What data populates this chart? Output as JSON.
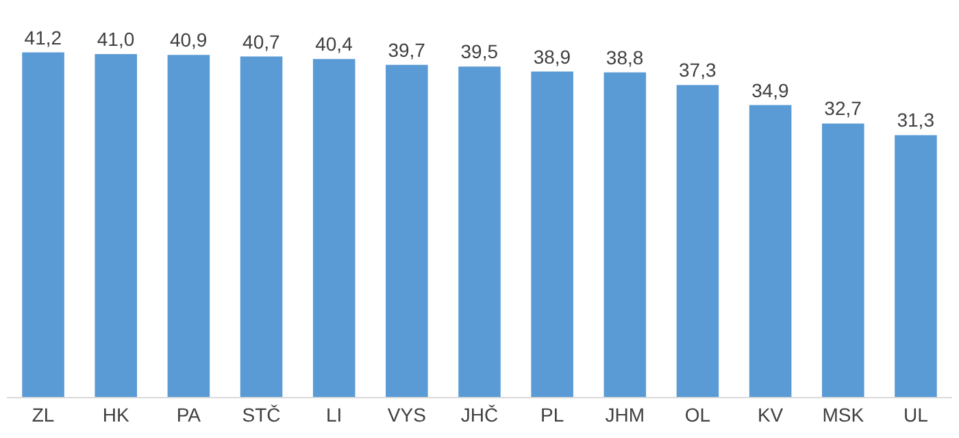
{
  "chart_data": {
    "type": "bar",
    "categories": [
      "ZL",
      "HK",
      "PA",
      "STČ",
      "LI",
      "VYS",
      "JHČ",
      "PL",
      "JHM",
      "OL",
      "KV",
      "MSK",
      "UL"
    ],
    "values": [
      41.2,
      41.0,
      40.9,
      40.7,
      40.4,
      39.7,
      39.5,
      38.9,
      38.8,
      37.3,
      34.9,
      32.7,
      31.3
    ],
    "value_labels": [
      "41,2",
      "41,0",
      "40,9",
      "40,7",
      "40,4",
      "39,7",
      "39,5",
      "38,9",
      "38,8",
      "37,3",
      "34,9",
      "32,7",
      "31,3"
    ],
    "color": "#5b9bd5"
  }
}
